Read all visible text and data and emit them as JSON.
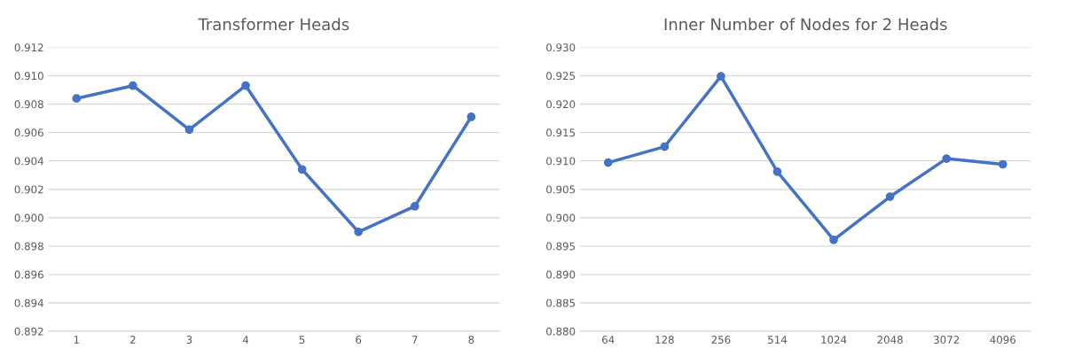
{
  "chart_data": [
    {
      "type": "line",
      "title": "Transformer Heads",
      "categories": [
        "1",
        "2",
        "3",
        "4",
        "5",
        "6",
        "7",
        "8"
      ],
      "series": [
        {
          "color": "#4472c4",
          "values": [
            0.9084,
            0.9093,
            0.9062,
            0.9093,
            0.9034,
            0.899,
            0.9008,
            0.9071
          ]
        }
      ],
      "ylim": [
        0.892,
        0.912
      ],
      "yticks": [
        0.892,
        0.894,
        0.896,
        0.898,
        {
          "value": 0.9,
          "label": "0.900"
        },
        0.902,
        0.904,
        0.906,
        0.908,
        {
          "value": 0.91,
          "label": "0.910"
        },
        0.912
      ],
      "grid": "y",
      "marker": "circle",
      "line_style": "solid"
    },
    {
      "type": "line",
      "title": "Inner Number of Nodes for 2 Heads",
      "categories": [
        "64",
        "128",
        "256",
        "514",
        "1024",
        "2048",
        "3072",
        "4096"
      ],
      "series": [
        {
          "color": "#4472c4",
          "values": [
            0.9097,
            0.9125,
            0.9249,
            0.9081,
            0.8961,
            0.9037,
            0.9104,
            0.9094
          ]
        }
      ],
      "ylim": [
        0.88,
        0.93
      ],
      "yticks": [
        {
          "value": 0.88,
          "label": "0.880"
        },
        0.885,
        {
          "value": 0.89,
          "label": "0.890"
        },
        0.895,
        {
          "value": 0.9,
          "label": "0.900"
        },
        0.905,
        {
          "value": 0.91,
          "label": "0.910"
        },
        0.915,
        {
          "value": 0.92,
          "label": "0.920"
        },
        0.925,
        {
          "value": 0.93,
          "label": "0.930"
        }
      ],
      "grid": "y",
      "marker": "circle",
      "line_style": "solid"
    }
  ]
}
